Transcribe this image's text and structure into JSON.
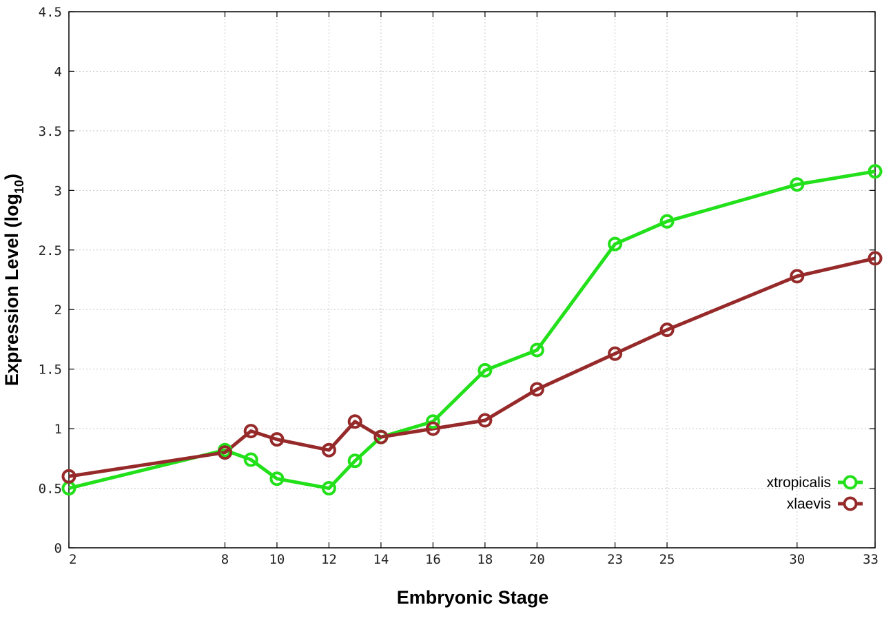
{
  "chart_data": {
    "type": "line",
    "title": "",
    "xlabel": "Embryonic Stage",
    "ylabel_main": "Expression Level (log",
    "ylabel_sub": "10",
    "ylabel_close": ")",
    "xlim": [
      2,
      33
    ],
    "ylim": [
      0,
      4.5
    ],
    "x_ticks": [
      2,
      8,
      10,
      12,
      14,
      16,
      18,
      20,
      23,
      25,
      30,
      33
    ],
    "y_ticks": [
      0,
      0.5,
      1,
      1.5,
      2,
      2.5,
      3,
      3.5,
      4,
      4.5
    ],
    "grid": true,
    "legend_position": "bottom-right",
    "x": [
      2,
      8,
      9,
      10,
      12,
      13,
      14,
      16,
      18,
      20,
      23,
      25,
      30,
      33
    ],
    "series": [
      {
        "name": "xtropicalis",
        "color": "#22e01a",
        "values": [
          0.5,
          0.82,
          0.74,
          0.58,
          0.5,
          0.73,
          0.93,
          1.06,
          1.49,
          1.66,
          2.55,
          2.74,
          3.05,
          3.16
        ]
      },
      {
        "name": "xlaevis",
        "color": "#962a2a",
        "values": [
          0.6,
          0.8,
          0.98,
          0.91,
          0.82,
          1.06,
          0.93,
          1.0,
          1.07,
          1.33,
          1.63,
          1.83,
          2.28,
          2.43
        ]
      }
    ]
  }
}
